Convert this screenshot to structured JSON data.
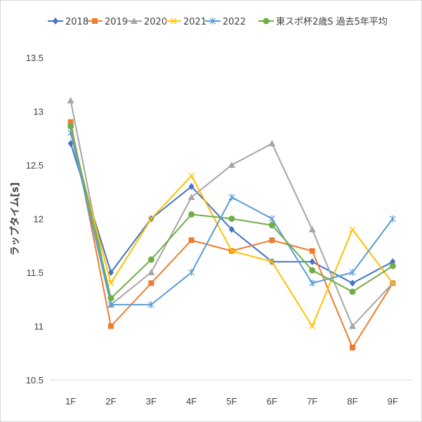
{
  "chart_data": {
    "type": "line",
    "title": "",
    "xlabel": "",
    "ylabel": "ラップタイム[s]",
    "categories": [
      "1F",
      "2F",
      "3F",
      "4F",
      "5F",
      "6F",
      "7F",
      "8F",
      "9F"
    ],
    "ylim": [
      10.5,
      13.5
    ],
    "yticks": [
      "10.5",
      "11",
      "11.5",
      "12",
      "12.5",
      "13",
      "13.5"
    ],
    "grid": false,
    "legend_position": "top",
    "series": [
      {
        "name": "2018",
        "color": "#4472C4",
        "marker": "diamond",
        "values": [
          12.7,
          11.5,
          12.0,
          12.3,
          11.9,
          11.6,
          11.6,
          11.4,
          11.6
        ]
      },
      {
        "name": "2019",
        "color": "#ED7D31",
        "marker": "square",
        "values": [
          12.9,
          11.0,
          11.4,
          11.8,
          11.7,
          11.8,
          11.7,
          10.8,
          11.4
        ]
      },
      {
        "name": "2020",
        "color": "#A5A5A5",
        "marker": "triangle",
        "values": [
          13.1,
          11.2,
          11.5,
          12.2,
          12.5,
          12.7,
          11.9,
          11.0,
          11.4
        ]
      },
      {
        "name": "2021",
        "color": "#FFC000",
        "marker": "x",
        "values": [
          12.8,
          11.4,
          12.0,
          12.4,
          11.7,
          11.6,
          11.0,
          11.9,
          11.4
        ]
      },
      {
        "name": "2022",
        "color": "#5B9BD5",
        "marker": "star",
        "values": [
          12.8,
          11.2,
          11.2,
          11.5,
          12.2,
          12.0,
          11.4,
          11.5,
          12.0
        ]
      },
      {
        "name": "東スポ杯2歳S 過去5年平均",
        "color": "#70AD47",
        "marker": "circle",
        "values": [
          12.86,
          11.26,
          11.62,
          12.04,
          12.0,
          11.94,
          11.52,
          11.32,
          11.56
        ]
      }
    ]
  }
}
